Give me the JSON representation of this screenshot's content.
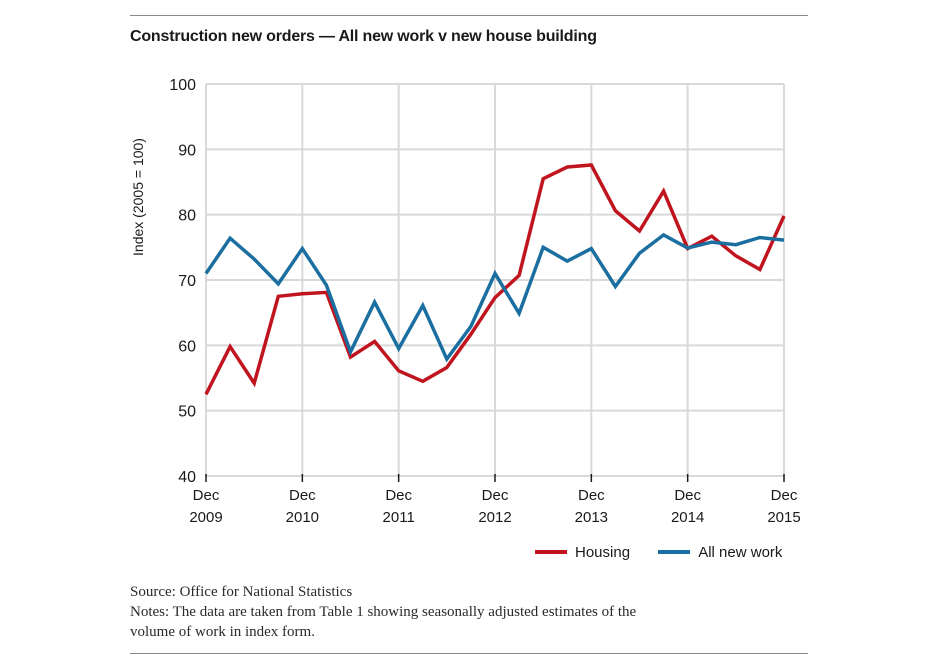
{
  "chart_data": {
    "type": "line",
    "title": "Construction new orders — All new work v new house building",
    "ylabel": "Index (2005 = 100)",
    "xlabel": "",
    "ylim": [
      40,
      100
    ],
    "yticks": [
      40,
      50,
      60,
      70,
      80,
      90,
      100
    ],
    "x_tick_labels": [
      {
        "month": "Dec",
        "year": "2009"
      },
      {
        "month": "Dec",
        "year": "2010"
      },
      {
        "month": "Dec",
        "year": "2011"
      },
      {
        "month": "Dec",
        "year": "2012"
      },
      {
        "month": "Dec",
        "year": "2013"
      },
      {
        "month": "Dec",
        "year": "2014"
      },
      {
        "month": "Dec",
        "year": "2015"
      }
    ],
    "x": [
      "Dec 2009",
      "Mar 2010",
      "Jun 2010",
      "Sep 2010",
      "Dec 2010",
      "Mar 2011",
      "Jun 2011",
      "Sep 2011",
      "Dec 2011",
      "Mar 2012",
      "Jun 2012",
      "Sep 2012",
      "Dec 2012",
      "Mar 2013",
      "Jun 2013",
      "Sep 2013",
      "Dec 2013",
      "Mar 2014",
      "Jun 2014",
      "Sep 2014",
      "Dec 2014",
      "Mar 2015",
      "Jun 2015",
      "Sep 2015",
      "Dec 2015"
    ],
    "grid": true,
    "legend_position": "bottom-right",
    "series": [
      {
        "name": "Housing",
        "color": "#c0141e",
        "values": [
          52.5,
          59.8,
          54.2,
          67.5,
          67.9,
          68.1,
          58.2,
          60.6,
          56.1,
          54.5,
          56.6,
          61.7,
          67.3,
          70.7,
          85.5,
          87.3,
          87.6,
          80.6,
          77.5,
          83.6,
          74.8,
          76.7,
          73.7,
          71.6,
          79.8
        ]
      },
      {
        "name": "All new work",
        "color": "#1b6fa0",
        "values": [
          71.0,
          76.4,
          73.2,
          69.4,
          74.8,
          69.2,
          59.0,
          66.6,
          59.5,
          66.1,
          57.9,
          62.9,
          71.0,
          64.9,
          75.0,
          72.9,
          74.8,
          69.0,
          74.1,
          76.9,
          74.9,
          75.8,
          75.4,
          76.5,
          76.1
        ]
      }
    ]
  },
  "legend": [
    {
      "label": "Housing",
      "color": "#c0141e"
    },
    {
      "label": "All new work",
      "color": "#1b6fa0"
    }
  ],
  "notes": {
    "source": "Source: Office for National Statistics",
    "line1": "Notes: The data are taken from Table 1 showing seasonally adjusted estimates of the",
    "line2": "volume of work in index form."
  },
  "colors": {
    "grid": "#d9d9d9",
    "axis": "#1a1a1a"
  }
}
